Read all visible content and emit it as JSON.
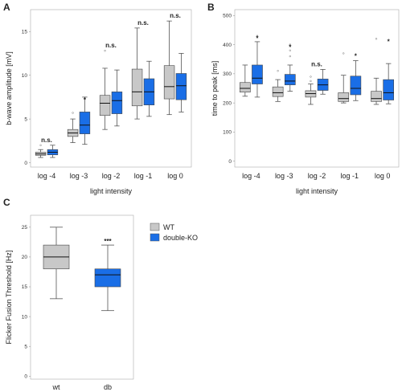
{
  "colors": {
    "wt": "#c8c8c8",
    "ko": "#1a6ee6",
    "median": "#111111",
    "whisker": "#555555",
    "frame": "#aaaaaa"
  },
  "legend": {
    "items": [
      {
        "label": "WT",
        "color": "#c8c8c8"
      },
      {
        "label": "double-KO",
        "color": "#1a6ee6"
      }
    ]
  },
  "chart_data": [
    {
      "panel": "A",
      "type": "box",
      "xlabel": "light intensity",
      "ylabel": "b-wave amplitude [mV]",
      "ylim": [
        -0.5,
        17.5
      ],
      "yticks": [
        0,
        5,
        10,
        15
      ],
      "categories": [
        "log -4",
        "log -3",
        "log -2",
        "log -1",
        "log 0"
      ],
      "significance": [
        "n.s.",
        "*",
        "n.s.",
        "n.s.",
        "n.s."
      ],
      "series": [
        {
          "group": "wt",
          "boxes": [
            {
              "whislo": 0.6,
              "q1": 0.85,
              "med": 1.0,
              "q3": 1.2,
              "whishi": 1.5,
              "fliers": [
                2.0
              ]
            },
            {
              "whislo": 2.3,
              "q1": 3.0,
              "med": 3.4,
              "q3": 3.8,
              "whishi": 5.0,
              "fliers": [
                5.7
              ]
            },
            {
              "whislo": 3.8,
              "q1": 5.4,
              "med": 6.8,
              "q3": 7.7,
              "whishi": 10.8,
              "fliers": [
                12.8
              ]
            },
            {
              "whislo": 5.0,
              "q1": 6.5,
              "med": 8.1,
              "q3": 10.7,
              "whishi": 15.4,
              "fliers": []
            },
            {
              "whislo": 5.5,
              "q1": 7.3,
              "med": 8.7,
              "q3": 11.1,
              "whishi": 16.2,
              "fliers": []
            }
          ]
        },
        {
          "group": "ko",
          "boxes": [
            {
              "whislo": 0.6,
              "q1": 0.9,
              "med": 1.2,
              "q3": 1.5,
              "whishi": 2.0,
              "fliers": []
            },
            {
              "whislo": 2.1,
              "q1": 3.3,
              "med": 4.3,
              "q3": 5.8,
              "whishi": 7.5,
              "fliers": []
            },
            {
              "whislo": 4.2,
              "q1": 5.6,
              "med": 7.1,
              "q3": 8.1,
              "whishi": 10.6,
              "fliers": []
            },
            {
              "whislo": 5.3,
              "q1": 6.6,
              "med": 8.1,
              "q3": 9.6,
              "whishi": 11.6,
              "fliers": []
            },
            {
              "whislo": 5.8,
              "q1": 7.2,
              "med": 8.8,
              "q3": 10.2,
              "whishi": 12.5,
              "fliers": []
            }
          ]
        }
      ]
    },
    {
      "panel": "B",
      "type": "box",
      "xlabel": "light intensity",
      "ylabel": "time to peak [ms]",
      "ylim": [
        -20,
        520
      ],
      "yticks": [
        0,
        100,
        200,
        300,
        400,
        500
      ],
      "categories": [
        "log -4",
        "log -3",
        "log -2",
        "log -1",
        "log 0"
      ],
      "significance": [
        "*",
        "*",
        "n.s.",
        "*",
        "*"
      ],
      "series": [
        {
          "group": "wt",
          "boxes": [
            {
              "whislo": 223,
              "q1": 237,
              "med": 250,
              "q3": 270,
              "whishi": 330,
              "fliers": []
            },
            {
              "whislo": 205,
              "q1": 222,
              "med": 235,
              "q3": 255,
              "whishi": 280,
              "fliers": [
                310
              ]
            },
            {
              "whislo": 195,
              "q1": 220,
              "med": 232,
              "q3": 242,
              "whishi": 265,
              "fliers": [
                275,
                290
              ]
            },
            {
              "whislo": 200,
              "q1": 205,
              "med": 215,
              "q3": 235,
              "whishi": 295,
              "fliers": [
                370
              ]
            },
            {
              "whislo": 195,
              "q1": 205,
              "med": 215,
              "q3": 240,
              "whishi": 285,
              "fliers": [
                420
              ]
            }
          ]
        },
        {
          "group": "ko",
          "boxes": [
            {
              "whislo": 220,
              "q1": 265,
              "med": 285,
              "q3": 330,
              "whishi": 410,
              "fliers": [
                430
              ]
            },
            {
              "whislo": 240,
              "q1": 262,
              "med": 275,
              "q3": 298,
              "whishi": 330,
              "fliers": [
                360,
                380,
                400
              ]
            },
            {
              "whislo": 230,
              "q1": 243,
              "med": 262,
              "q3": 282,
              "whishi": 315,
              "fliers": []
            },
            {
              "whislo": 208,
              "q1": 228,
              "med": 250,
              "q3": 292,
              "whishi": 345,
              "fliers": []
            },
            {
              "whislo": 197,
              "q1": 210,
              "med": 235,
              "q3": 280,
              "whishi": 335,
              "fliers": []
            }
          ]
        }
      ]
    },
    {
      "panel": "C",
      "type": "box",
      "xlabel": "",
      "ylabel": "Flicker Fusion Threshold [Hz]",
      "ylim": [
        -0.5,
        27
      ],
      "yticks": [
        0,
        5,
        10,
        15,
        20,
        25
      ],
      "categories": [
        "wt",
        "db"
      ],
      "significance_label": "***",
      "boxes": [
        {
          "group": "wt",
          "whislo": 13,
          "q1": 18,
          "med": 20,
          "q3": 22,
          "whishi": 25,
          "fliers": []
        },
        {
          "group": "ko",
          "whislo": 11,
          "q1": 15,
          "med": 17,
          "q3": 18,
          "whishi": 22,
          "fliers": []
        }
      ]
    }
  ]
}
